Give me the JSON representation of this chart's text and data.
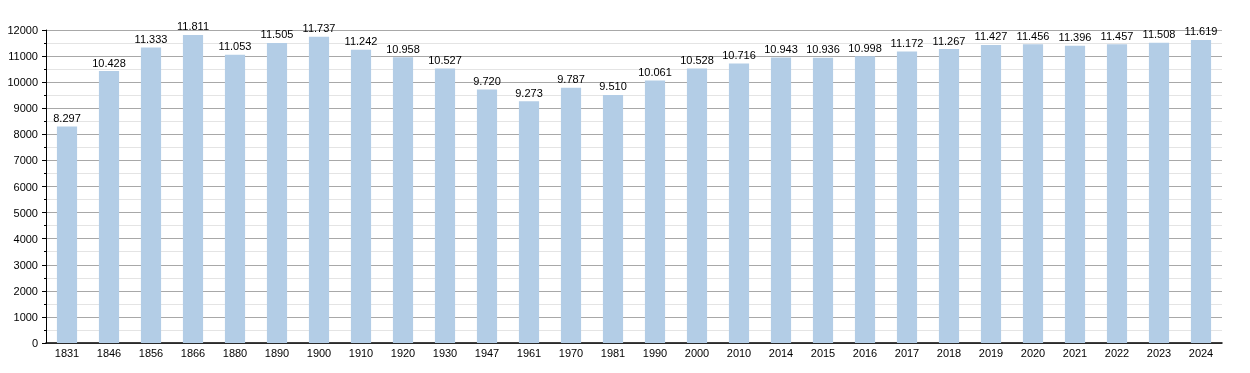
{
  "chart_data": {
    "type": "bar",
    "categories": [
      "1831",
      "1846",
      "1856",
      "1866",
      "1880",
      "1890",
      "1900",
      "1910",
      "1920",
      "1930",
      "1947",
      "1961",
      "1970",
      "1981",
      "1990",
      "2000",
      "2010",
      "2014",
      "2015",
      "2016",
      "2017",
      "2018",
      "2019",
      "2020",
      "2021",
      "2022",
      "2023",
      "2024"
    ],
    "values": [
      8297,
      10428,
      11333,
      11811,
      11053,
      11505,
      11737,
      11242,
      10958,
      10527,
      9720,
      9273,
      9787,
      9510,
      10061,
      10528,
      10716,
      10943,
      10936,
      10998,
      11172,
      11267,
      11427,
      11456,
      11396,
      11457,
      11508,
      11619
    ],
    "value_labels": [
      "8.297",
      "10.428",
      "11.333",
      "11.811",
      "11.053",
      "11.505",
      "11.737",
      "11.242",
      "10.958",
      "10.527",
      "9.720",
      "9.273",
      "9.787",
      "9.510",
      "10.061",
      "10.528",
      "10.716",
      "10.943",
      "10.936",
      "10.998",
      "11.172",
      "11.267",
      "11.427",
      "11.456",
      "11.396",
      "11.457",
      "11.508",
      "11.619"
    ],
    "color": "#b3cde6",
    "ylim": [
      0,
      12000
    ],
    "yticks": [
      0,
      1000,
      2000,
      3000,
      4000,
      5000,
      6000,
      7000,
      8000,
      9000,
      10000,
      11000,
      12000
    ],
    "grid": true
  }
}
